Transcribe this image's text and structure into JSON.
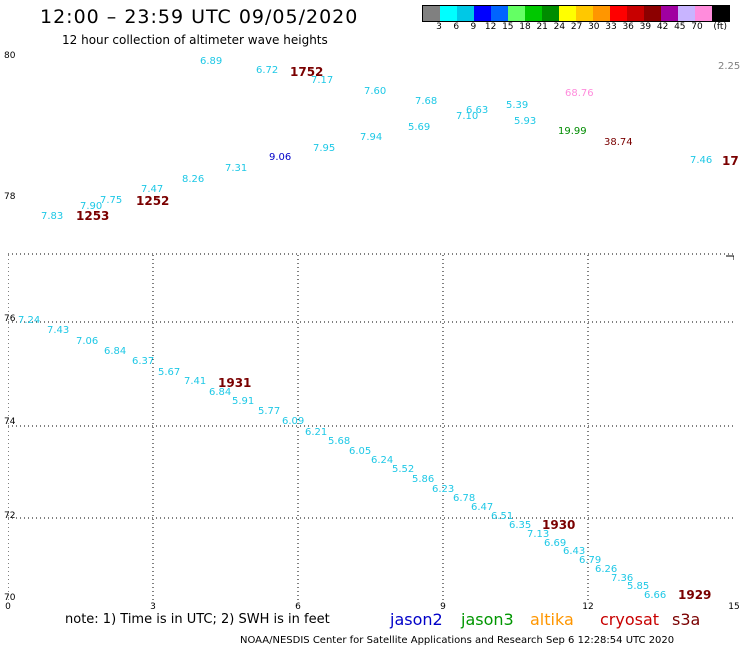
{
  "title": "12:00 – 23:59 UTC 09/05/2020",
  "subtitle": "12 hour collection of altimeter wave heights",
  "scale": {
    "unit": "(ft)",
    "colors": [
      "#808080",
      "#00ffff",
      "#00c8e6",
      "#0000ff",
      "#0064ff",
      "#64ff64",
      "#00c800",
      "#008c00",
      "#ffff00",
      "#ffc800",
      "#ff9600",
      "#ff0000",
      "#c80000",
      "#8c0000",
      "#a000a0",
      "#c8b4ff",
      "#ff8cdc",
      "#000000"
    ],
    "ticks": [
      "3",
      "6",
      "9",
      "12",
      "15",
      "18",
      "21",
      "24",
      "27",
      "30",
      "33",
      "36",
      "39",
      "42",
      "45",
      "70"
    ]
  },
  "axes": {
    "lat_labels": [
      "80",
      "78",
      "76",
      "74",
      "72",
      "70"
    ],
    "lon_labels": [
      "0",
      "3",
      "6",
      "9",
      "12",
      "15"
    ]
  },
  "readings": [
    {
      "text": "6.89",
      "color": "#1ec8e6"
    },
    {
      "text": "6.72",
      "color": "#1ec8e6"
    },
    {
      "text": "1752",
      "color": "#7a0000",
      "big": true
    },
    {
      "text": "7.17",
      "color": "#1ec8e6"
    },
    {
      "text": "7.60",
      "color": "#1ec8e6"
    },
    {
      "text": "7.68",
      "color": "#1ec8e6"
    },
    {
      "text": "6.63",
      "color": "#1ec8e6"
    },
    {
      "text": "7.10",
      "color": "#1ec8e6"
    },
    {
      "text": "5.39",
      "color": "#1ec8e6"
    },
    {
      "text": "5.93",
      "color": "#1ec8e6"
    },
    {
      "text": "68.76",
      "color": "#ff8cdc"
    },
    {
      "text": "2.25",
      "color": "#808080"
    },
    {
      "text": "5.69",
      "color": "#1ec8e6"
    },
    {
      "text": "7.94",
      "color": "#1ec8e6"
    },
    {
      "text": "7.95",
      "color": "#1ec8e6"
    },
    {
      "text": "9.06",
      "color": "#0000c8"
    },
    {
      "text": "19.99",
      "color": "#008c00"
    },
    {
      "text": "38.74",
      "color": "#7a0000"
    },
    {
      "text": "7.46",
      "color": "#1ec8e6"
    },
    {
      "text": "17",
      "color": "#7a0000",
      "big": true
    },
    {
      "text": "7.31",
      "color": "#1ec8e6"
    },
    {
      "text": "8.26",
      "color": "#1ec8e6"
    },
    {
      "text": "7.47",
      "color": "#1ec8e6"
    },
    {
      "text": "1252",
      "color": "#7a0000",
      "big": true
    },
    {
      "text": "7.75",
      "color": "#1ec8e6"
    },
    {
      "text": "7.90",
      "color": "#1ec8e6"
    },
    {
      "text": "7.83",
      "color": "#1ec8e6"
    },
    {
      "text": "1253",
      "color": "#7a0000",
      "big": true
    },
    {
      "text": "7.24",
      "color": "#1ec8e6"
    },
    {
      "text": "7.43",
      "color": "#1ec8e6"
    },
    {
      "text": "7.06",
      "color": "#1ec8e6"
    },
    {
      "text": "6.84",
      "color": "#1ec8e6"
    },
    {
      "text": "6.37",
      "color": "#1ec8e6"
    },
    {
      "text": "5.67",
      "color": "#1ec8e6"
    },
    {
      "text": "7.41",
      "color": "#1ec8e6"
    },
    {
      "text": "1931",
      "color": "#7a0000",
      "big": true
    },
    {
      "text": "6.84",
      "color": "#1ec8e6"
    },
    {
      "text": "5.91",
      "color": "#1ec8e6"
    },
    {
      "text": "5.77",
      "color": "#1ec8e6"
    },
    {
      "text": "6.09",
      "color": "#1ec8e6"
    },
    {
      "text": "6.21",
      "color": "#1ec8e6"
    },
    {
      "text": "5.68",
      "color": "#1ec8e6"
    },
    {
      "text": "6.05",
      "color": "#1ec8e6"
    },
    {
      "text": "6.24",
      "color": "#1ec8e6"
    },
    {
      "text": "5.52",
      "color": "#1ec8e6"
    },
    {
      "text": "5.86",
      "color": "#1ec8e6"
    },
    {
      "text": "6.23",
      "color": "#1ec8e6"
    },
    {
      "text": "6.78",
      "color": "#1ec8e6"
    },
    {
      "text": "6.47",
      "color": "#1ec8e6"
    },
    {
      "text": "6.51",
      "color": "#1ec8e6"
    },
    {
      "text": "6.35",
      "color": "#1ec8e6"
    },
    {
      "text": "1930",
      "color": "#7a0000",
      "big": true
    },
    {
      "text": "7.13",
      "color": "#1ec8e6"
    },
    {
      "text": "6.69",
      "color": "#1ec8e6"
    },
    {
      "text": "6.43",
      "color": "#1ec8e6"
    },
    {
      "text": "6.79",
      "color": "#1ec8e6"
    },
    {
      "text": "6.26",
      "color": "#1ec8e6"
    },
    {
      "text": "7.36",
      "color": "#1ec8e6"
    },
    {
      "text": "5.85",
      "color": "#1ec8e6"
    },
    {
      "text": "6.66",
      "color": "#1ec8e6"
    },
    {
      "text": "1929",
      "color": "#7a0000",
      "big": true
    }
  ],
  "note": "note: 1) Time is in UTC; 2) SWH is in feet",
  "missions": [
    {
      "name": "jason2",
      "color": "#0000c8"
    },
    {
      "name": "jason3",
      "color": "#009600"
    },
    {
      "name": "altika",
      "color": "#ff9600"
    },
    {
      "name": "cryosat",
      "color": "#c80000"
    },
    {
      "name": "s3a",
      "color": "#7a0000"
    }
  ],
  "footer": "NOAA/NESDIS Center for Satellite Applications and Research   Sep  6 12:28:54 UTC 2020"
}
